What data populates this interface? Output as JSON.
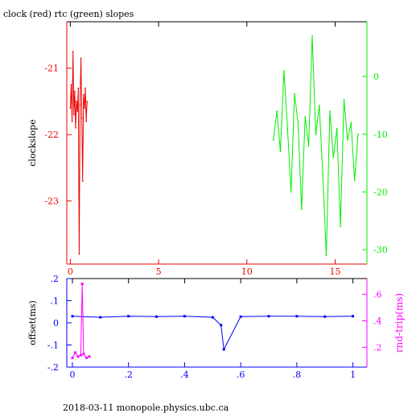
{
  "title": "clock (red) rtc (green) slopes",
  "footer": "2018-03-11 monopole.physics.ubc.ca",
  "colors": {
    "red": "#ee0000",
    "green": "#00ee00",
    "blue": "#0000ff",
    "magenta": "#ff00ff",
    "axis": "#000000"
  },
  "chart_data": [
    {
      "type": "line",
      "title": "clock (red) rtc (green) slopes",
      "xlabel": "",
      "ylabel": "clockslope",
      "xlim": [
        -0.2,
        16.8
      ],
      "x_ticks": [
        0,
        5,
        10,
        15
      ],
      "y_left_lim": [
        -23.95,
        -20.3
      ],
      "y_left_ticks": [
        -21,
        -22,
        -23
      ],
      "y_right_lim": [
        -32.5,
        9.5
      ],
      "y_right_ticks": [
        0,
        -10,
        -20,
        -30
      ],
      "grid": false,
      "series": [
        {
          "color": "red",
          "axis": "left",
          "x": [
            0.0,
            0.05,
            0.1,
            0.15,
            0.2,
            0.25,
            0.3,
            0.35,
            0.4,
            0.45,
            0.5,
            0.55,
            0.6,
            0.65,
            0.7,
            0.75,
            0.8,
            0.85,
            0.9,
            0.95
          ],
          "y": [
            -21.6,
            -21.25,
            -21.8,
            -20.75,
            -21.7,
            -21.35,
            -21.9,
            -21.5,
            -21.65,
            -21.3,
            -23.8,
            -21.55,
            -20.85,
            -21.75,
            -22.7,
            -21.4,
            -21.6,
            -21.3,
            -21.8,
            -21.5
          ]
        },
        {
          "color": "green",
          "axis": "right",
          "x": [
            11.5,
            11.7,
            11.9,
            12.1,
            12.3,
            12.5,
            12.7,
            12.9,
            13.1,
            13.3,
            13.5,
            13.7,
            13.9,
            14.1,
            14.3,
            14.5,
            14.7,
            14.9,
            15.1,
            15.3,
            15.5,
            15.7,
            15.9,
            16.1,
            16.3
          ],
          "y": [
            -11,
            -6,
            -13,
            1,
            -9,
            -20,
            -3,
            -8,
            -23,
            -7,
            -12,
            7,
            -10,
            -5,
            -17,
            -31,
            -6,
            -14,
            -9,
            -26,
            -4,
            -11,
            -8,
            -18,
            -10
          ]
        }
      ]
    },
    {
      "type": "scatter",
      "xlabel": "",
      "ylabel": "offset(ms)",
      "y2label": "rnd-trip(ms)",
      "xlim": [
        -0.02,
        1.05
      ],
      "x_ticks": [
        0,
        0.2,
        0.4,
        0.6,
        0.8,
        1
      ],
      "y_left_lim": [
        -0.2,
        0.2
      ],
      "y_left_ticks": [
        0.2,
        0.1,
        0,
        -0.1,
        -0.2
      ],
      "y_right_lim": [
        0.05,
        0.72
      ],
      "y_right_ticks": [
        0.6,
        0.4,
        0.2
      ],
      "grid": false,
      "series": [
        {
          "color": "blue",
          "axis": "left",
          "x": [
            0.0,
            0.1,
            0.2,
            0.3,
            0.4,
            0.5,
            0.53,
            0.54,
            0.6,
            0.7,
            0.8,
            0.9,
            1.0
          ],
          "y": [
            0.03,
            0.025,
            0.03,
            0.028,
            0.03,
            0.025,
            -0.01,
            -0.12,
            0.028,
            0.03,
            0.03,
            0.028,
            0.03
          ]
        },
        {
          "color": "magenta",
          "axis": "right",
          "x": [
            0.0,
            0.01,
            0.02,
            0.03,
            0.035,
            0.04,
            0.05,
            0.06
          ],
          "y": [
            0.12,
            0.16,
            0.13,
            0.14,
            0.68,
            0.15,
            0.12,
            0.13
          ]
        }
      ]
    }
  ]
}
